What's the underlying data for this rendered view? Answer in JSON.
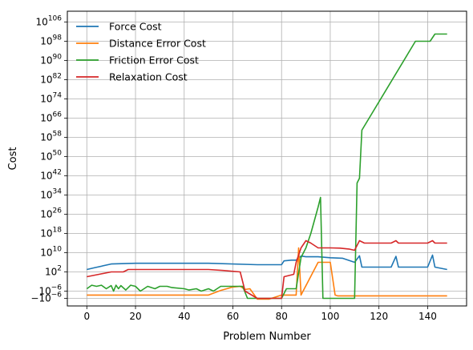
{
  "chart_data": {
    "type": "line",
    "xlabel": "Problem Number",
    "ylabel": "Cost",
    "xlim": [
      -8,
      156
    ],
    "x_ticks": [
      0,
      20,
      40,
      60,
      80,
      100,
      120,
      140
    ],
    "y_scale": "symlog",
    "y_ticks": [
      {
        "label": "10",
        "sup": "106",
        "value": 1e+106
      },
      {
        "label": "10",
        "sup": "98",
        "value": 1e+98
      },
      {
        "label": "10",
        "sup": "90",
        "value": 1e+90
      },
      {
        "label": "10",
        "sup": "82",
        "value": 1e+82
      },
      {
        "label": "10",
        "sup": "74",
        "value": 1e+74
      },
      {
        "label": "10",
        "sup": "66",
        "value": 1e+66
      },
      {
        "label": "10",
        "sup": "58",
        "value": 1e+58
      },
      {
        "label": "10",
        "sup": "50",
        "value": 1e+50
      },
      {
        "label": "10",
        "sup": "42",
        "value": 1e+42
      },
      {
        "label": "10",
        "sup": "34",
        "value": 1e+34
      },
      {
        "label": "10",
        "sup": "26",
        "value": 1e+26
      },
      {
        "label": "10",
        "sup": "18",
        "value": 1e+18
      },
      {
        "label": "10",
        "sup": "10",
        "value": 10000000000.0
      },
      {
        "label": "10",
        "sup": "2",
        "value": 100
      },
      {
        "label": "10",
        "sup": "−6",
        "value": 1e-06
      },
      {
        "label": "−10",
        "sup": "−6",
        "value": -1e-06
      }
    ],
    "grid": true,
    "legend_position": "upper-left",
    "series": [
      {
        "name": "Force Cost",
        "color": "#1f77b4",
        "points": [
          [
            0,
            1000.0
          ],
          [
            3,
            5000.0
          ],
          [
            10,
            200000.0
          ],
          [
            20,
            400000.0
          ],
          [
            50,
            400000.0
          ],
          [
            70,
            100000.0
          ],
          [
            80,
            100000.0
          ],
          [
            81,
            4000000.0
          ],
          [
            84,
            8000000.0
          ],
          [
            86,
            8000000.0
          ],
          [
            88,
            400000000.0
          ],
          [
            90,
            200000000.0
          ],
          [
            95,
            200000000.0
          ],
          [
            100,
            80000000.0
          ],
          [
            105,
            50000000.0
          ],
          [
            110,
            1000000.0
          ],
          [
            112,
            500000000.0
          ],
          [
            113,
            10000.0
          ],
          [
            125,
            10000.0
          ],
          [
            127,
            300000000.0
          ],
          [
            128,
            10000.0
          ],
          [
            140,
            10000.0
          ],
          [
            142,
            1000000000.0
          ],
          [
            143,
            10000.0
          ],
          [
            148,
            1000.0
          ]
        ]
      },
      {
        "name": "Distance Error Cost",
        "color": "#ff7f0e",
        "points": [
          [
            0,
            -1e-07
          ],
          [
            50,
            -1e-07
          ],
          [
            55,
            2e-06
          ],
          [
            60,
            5e-05
          ],
          [
            63,
            0.0001
          ],
          [
            65,
            5e-06
          ],
          [
            67,
            1e-05
          ],
          [
            70,
            -2e-06
          ],
          [
            75,
            -2e-06
          ],
          [
            80,
            -1e-07
          ],
          [
            85,
            -1e-07
          ],
          [
            86,
            -1e-07
          ],
          [
            87,
            1000000000000.0
          ],
          [
            88,
            -1e-07
          ],
          [
            95,
            1000000.0
          ],
          [
            100,
            1000000.0
          ],
          [
            102,
            -1e-07
          ],
          [
            103,
            -3e-07
          ],
          [
            148,
            -3e-07
          ]
        ]
      },
      {
        "name": "Friction Error Cost",
        "color": "#2ca02c",
        "points": [
          [
            0,
            1e-05
          ],
          [
            2,
            0.0003
          ],
          [
            4,
            0.0001
          ],
          [
            6,
            0.0003
          ],
          [
            8,
            1e-05
          ],
          [
            10,
            0.0002
          ],
          [
            11,
            1e-06
          ],
          [
            12,
            0.0003
          ],
          [
            13,
            1e-05
          ],
          [
            14,
            0.0002
          ],
          [
            16,
            3e-06
          ],
          [
            18,
            0.0003
          ],
          [
            20,
            0.0001
          ],
          [
            22,
            1e-06
          ],
          [
            25,
            0.0001
          ],
          [
            28,
            1e-05
          ],
          [
            30,
            0.0001
          ],
          [
            33,
            0.0001
          ],
          [
            35,
            3e-05
          ],
          [
            40,
            1e-05
          ],
          [
            42,
            3e-06
          ],
          [
            45,
            1e-05
          ],
          [
            47,
            1e-06
          ],
          [
            50,
            1e-05
          ],
          [
            52,
            1e-06
          ],
          [
            55,
            0.0001
          ],
          [
            64,
            0.0001
          ],
          [
            66,
            -1e-06
          ],
          [
            70,
            -1e-06
          ],
          [
            80,
            -1e-06
          ],
          [
            82,
            1e-05
          ],
          [
            86,
            1e-05
          ],
          [
            88,
            100000000.0
          ],
          [
            90,
            1000000000000.0
          ],
          [
            92,
            1e+18
          ],
          [
            95,
            1e+29
          ],
          [
            96,
            1e+33
          ],
          [
            97,
            -1e-06
          ],
          [
            108,
            -1e-06
          ],
          [
            110,
            -1e-06
          ],
          [
            111,
            1e+39
          ],
          [
            112,
            1e+41
          ],
          [
            113,
            1e+61
          ],
          [
            135,
            1e+98
          ],
          [
            141,
            1e+98
          ],
          [
            143,
            1e+101
          ],
          [
            148,
            1e+101
          ]
        ]
      },
      {
        "name": "Relaxation Cost",
        "color": "#d62728",
        "points": [
          [
            0,
            1.0
          ],
          [
            5,
            10.0
          ],
          [
            10,
            100.0
          ],
          [
            15,
            100.0
          ],
          [
            17,
            1000.0
          ],
          [
            40,
            1000.0
          ],
          [
            50,
            1000.0
          ],
          [
            56,
            400.0
          ],
          [
            63,
            100.0
          ],
          [
            65,
            1e-06
          ],
          [
            70,
            -1e-06
          ],
          [
            80,
            -1e-06
          ],
          [
            81,
            1.0
          ],
          [
            85,
            10.0
          ],
          [
            86,
            1000000.0
          ],
          [
            88,
            1000000000000.0
          ],
          [
            90,
            1000000000000000.0
          ],
          [
            92,
            100000000000000.0
          ],
          [
            95,
            1000000000000.0
          ],
          [
            98,
            1000000000000.0
          ],
          [
            100,
            1000000000000.0
          ],
          [
            104,
            800000000000.0
          ],
          [
            108,
            300000000000.0
          ],
          [
            110,
            100000000000.0
          ],
          [
            112,
            1000000000000000.0
          ],
          [
            114,
            100000000000000.0
          ],
          [
            125,
            100000000000000.0
          ],
          [
            127,
            1000000000000000.0
          ],
          [
            128,
            100000000000000.0
          ],
          [
            140,
            100000000000000.0
          ],
          [
            142,
            1000000000000000.0
          ],
          [
            143,
            100000000000000.0
          ],
          [
            148,
            100000000000000.0
          ]
        ]
      }
    ]
  }
}
